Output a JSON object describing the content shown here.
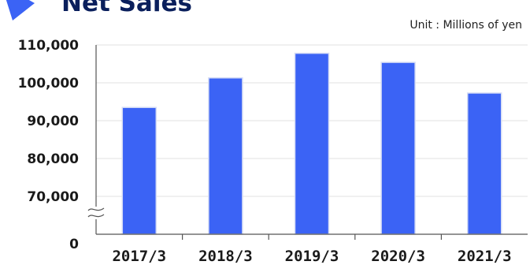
{
  "chart_data": {
    "type": "bar",
    "title": "Net Sales",
    "unit": "Unit : Millions of yen",
    "categories": [
      "2017/3",
      "2018/3",
      "2019/3",
      "2020/3",
      "2021/3"
    ],
    "values": [
      93500,
      101300,
      107800,
      105400,
      97300
    ],
    "y_tick_labels": [
      "110,000",
      "100,000",
      "90,000",
      "80,000",
      "70,000",
      "0"
    ],
    "ylim": [
      70000,
      110000
    ],
    "axis_break": true,
    "grid": true,
    "bar_color": "#3b63f5",
    "title_marker_color": "#3b63f5",
    "title_color": "#0a1f5c"
  }
}
